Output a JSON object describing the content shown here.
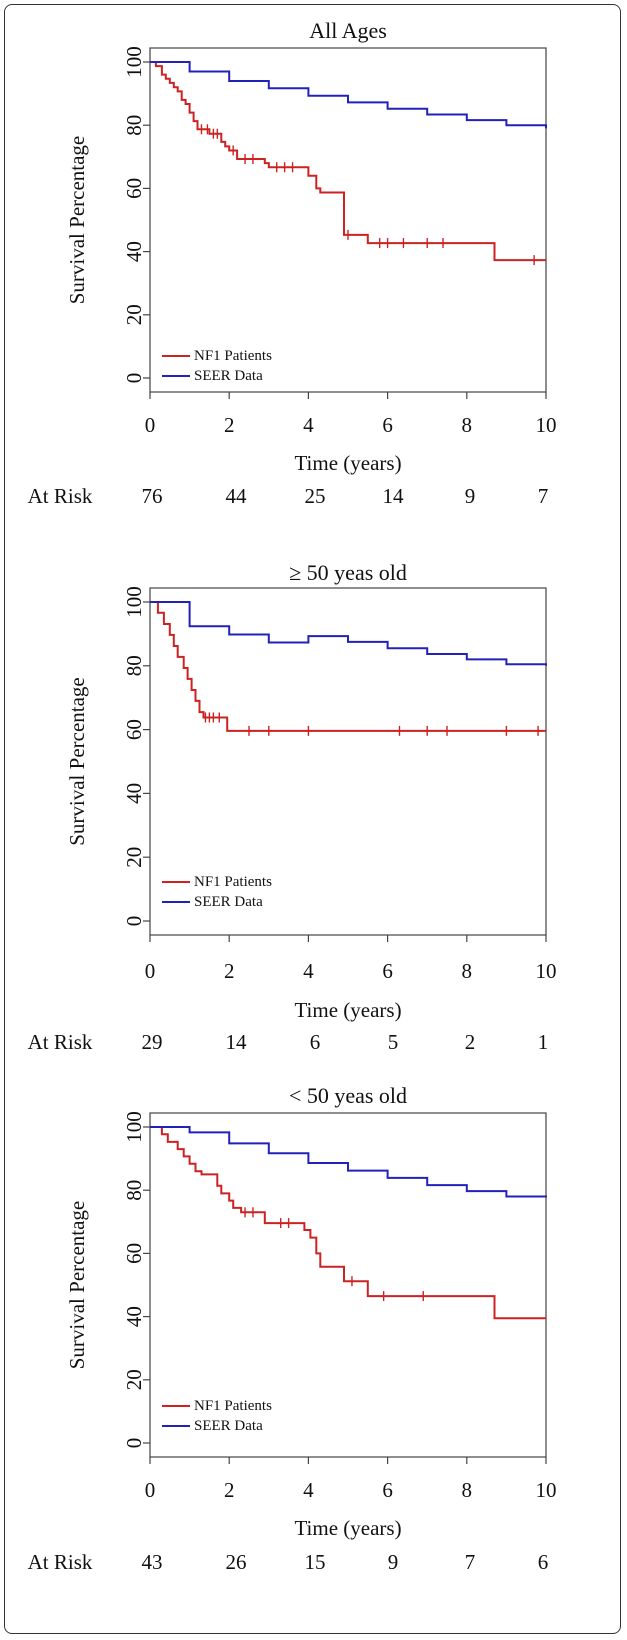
{
  "chart_data": [
    {
      "type": "line",
      "title": "All Ages",
      "xlabel": "Time  (years)",
      "ylabel": "Survival  Percentage",
      "xlim": [
        0,
        10
      ],
      "ylim": [
        0,
        100
      ],
      "x_ticks": [
        "0",
        "2",
        "4",
        "6",
        "8",
        "10"
      ],
      "y_ticks": [
        "0",
        "20",
        "40",
        "60",
        "80",
        "100"
      ],
      "legend_position": "bottom-left",
      "at_risk_label": "At Risk",
      "at_risk": [
        "76",
        "44",
        "25",
        "14",
        "9",
        "7"
      ],
      "series": [
        {
          "name": "NF1 Patients",
          "color": "#cc2222",
          "steps": [
            [
              0,
              100
            ],
            [
              0.15,
              98.7
            ],
            [
              0.3,
              96
            ],
            [
              0.4,
              94.7
            ],
            [
              0.5,
              93.4
            ],
            [
              0.6,
              92
            ],
            [
              0.7,
              90.7
            ],
            [
              0.8,
              88
            ],
            [
              0.9,
              86.7
            ],
            [
              1.0,
              84
            ],
            [
              1.1,
              81.3
            ],
            [
              1.2,
              78.7
            ],
            [
              1.5,
              77.3
            ],
            [
              1.8,
              74.7
            ],
            [
              1.9,
              73.3
            ],
            [
              2.0,
              72
            ],
            [
              2.2,
              69.3
            ],
            [
              2.9,
              68
            ],
            [
              3.0,
              66.7
            ],
            [
              4.0,
              64
            ],
            [
              4.2,
              60
            ],
            [
              4.3,
              58.7
            ],
            [
              4.9,
              45.3
            ],
            [
              5.5,
              42.7
            ],
            [
              8.7,
              37.3
            ],
            [
              10,
              37.3
            ]
          ],
          "censor_marks": [
            [
              1.3,
              78.7
            ],
            [
              1.45,
              78.7
            ],
            [
              1.6,
              77.3
            ],
            [
              1.7,
              77.3
            ],
            [
              2.1,
              72
            ],
            [
              2.4,
              69.3
            ],
            [
              2.6,
              69.3
            ],
            [
              3.2,
              66.7
            ],
            [
              3.4,
              66.7
            ],
            [
              3.6,
              66.7
            ],
            [
              5.0,
              45.3
            ],
            [
              5.8,
              42.7
            ],
            [
              6.0,
              42.7
            ],
            [
              6.4,
              42.7
            ],
            [
              7.0,
              42.7
            ],
            [
              7.4,
              42.7
            ],
            [
              9.7,
              37.3
            ]
          ]
        },
        {
          "name": "SEER Data",
          "color": "#2222bb",
          "steps": [
            [
              0,
              100
            ],
            [
              1.0,
              97
            ],
            [
              2.0,
              94
            ],
            [
              3.0,
              91.7
            ],
            [
              4.0,
              89.3
            ],
            [
              5.0,
              87.2
            ],
            [
              6.0,
              85.2
            ],
            [
              7.0,
              83.4
            ],
            [
              8.0,
              81.6
            ],
            [
              9.0,
              80
            ],
            [
              10,
              79
            ]
          ],
          "censor_marks": []
        }
      ]
    },
    {
      "type": "line",
      "title": "≥ 50 yeas old",
      "xlabel": "Time  (years)",
      "ylabel": "Survival  Percentage",
      "xlim": [
        0,
        10
      ],
      "ylim": [
        0,
        100
      ],
      "x_ticks": [
        "0",
        "2",
        "4",
        "6",
        "8",
        "10"
      ],
      "y_ticks": [
        "0",
        "20",
        "40",
        "60",
        "80",
        "100"
      ],
      "legend_position": "bottom-left",
      "at_risk_label": "At Risk",
      "at_risk": [
        "29",
        "14",
        "6",
        "5",
        "2",
        "1"
      ],
      "series": [
        {
          "name": "NF1 Patients",
          "color": "#cc2222",
          "steps": [
            [
              0,
              100
            ],
            [
              0.2,
              96.6
            ],
            [
              0.35,
              93.1
            ],
            [
              0.5,
              89.7
            ],
            [
              0.6,
              86.2
            ],
            [
              0.7,
              82.8
            ],
            [
              0.85,
              79.3
            ],
            [
              0.95,
              75.9
            ],
            [
              1.05,
              72.4
            ],
            [
              1.15,
              69
            ],
            [
              1.25,
              65.5
            ],
            [
              1.35,
              63.8
            ],
            [
              1.95,
              59.6
            ],
            [
              10,
              59.6
            ]
          ],
          "censor_marks": [
            [
              1.4,
              63.8
            ],
            [
              1.5,
              63.8
            ],
            [
              1.6,
              63.8
            ],
            [
              1.75,
              63.8
            ],
            [
              2.5,
              59.6
            ],
            [
              3.0,
              59.6
            ],
            [
              4.0,
              59.6
            ],
            [
              6.3,
              59.6
            ],
            [
              7.0,
              59.6
            ],
            [
              7.5,
              59.6
            ],
            [
              9.0,
              59.6
            ],
            [
              9.8,
              59.6
            ]
          ]
        },
        {
          "name": "SEER Data",
          "color": "#2222bb",
          "steps": [
            [
              0,
              100
            ],
            [
              1.0,
              92.4
            ],
            [
              2.0,
              89.8
            ],
            [
              3.0,
              87.3
            ],
            [
              4.0,
              89.3
            ],
            [
              5.0,
              87.5
            ],
            [
              6.0,
              85.5
            ],
            [
              7.0,
              83.7
            ],
            [
              8.0,
              82
            ],
            [
              9.0,
              80.5
            ],
            [
              10,
              80
            ]
          ],
          "censor_marks": []
        }
      ]
    },
    {
      "type": "line",
      "title": "< 50 yeas old",
      "xlabel": "Time  (years)",
      "ylabel": "Survival  Percentage",
      "xlim": [
        0,
        10
      ],
      "ylim": [
        0,
        100
      ],
      "x_ticks": [
        "0",
        "2",
        "4",
        "6",
        "8",
        "10"
      ],
      "y_ticks": [
        "0",
        "20",
        "40",
        "60",
        "80",
        "100"
      ],
      "legend_position": "bottom-left",
      "at_risk_label": "At Risk",
      "at_risk": [
        "43",
        "26",
        "15",
        "9",
        "7",
        "6"
      ],
      "series": [
        {
          "name": "NF1 Patients",
          "color": "#cc2222",
          "steps": [
            [
              0,
              100
            ],
            [
              0.3,
              97.7
            ],
            [
              0.45,
              95.3
            ],
            [
              0.7,
              93
            ],
            [
              0.85,
              90.7
            ],
            [
              1.0,
              88.4
            ],
            [
              1.15,
              86
            ],
            [
              1.3,
              85
            ],
            [
              1.7,
              81.4
            ],
            [
              1.8,
              79
            ],
            [
              2.0,
              76.7
            ],
            [
              2.1,
              74.4
            ],
            [
              2.3,
              73
            ],
            [
              2.9,
              69.6
            ],
            [
              3.9,
              67.4
            ],
            [
              4.05,
              65
            ],
            [
              4.2,
              60
            ],
            [
              4.3,
              55.8
            ],
            [
              4.9,
              51.2
            ],
            [
              5.5,
              46.5
            ],
            [
              8.7,
              39.5
            ],
            [
              10,
              39.5
            ]
          ],
          "censor_marks": [
            [
              2.4,
              73
            ],
            [
              2.6,
              73
            ],
            [
              3.3,
              69.6
            ],
            [
              3.5,
              69.6
            ],
            [
              5.1,
              51.2
            ],
            [
              5.9,
              46.5
            ],
            [
              6.9,
              46.5
            ]
          ]
        },
        {
          "name": "SEER Data",
          "color": "#2222bb",
          "steps": [
            [
              0,
              100
            ],
            [
              1.0,
              98.3
            ],
            [
              2.0,
              94.8
            ],
            [
              3.0,
              91.7
            ],
            [
              4.0,
              88.6
            ],
            [
              5.0,
              86.2
            ],
            [
              6.0,
              83.9
            ],
            [
              7.0,
              81.6
            ],
            [
              8.0,
              79.7
            ],
            [
              9.0,
              78
            ],
            [
              10,
              77.8
            ]
          ],
          "censor_marks": []
        }
      ]
    }
  ]
}
